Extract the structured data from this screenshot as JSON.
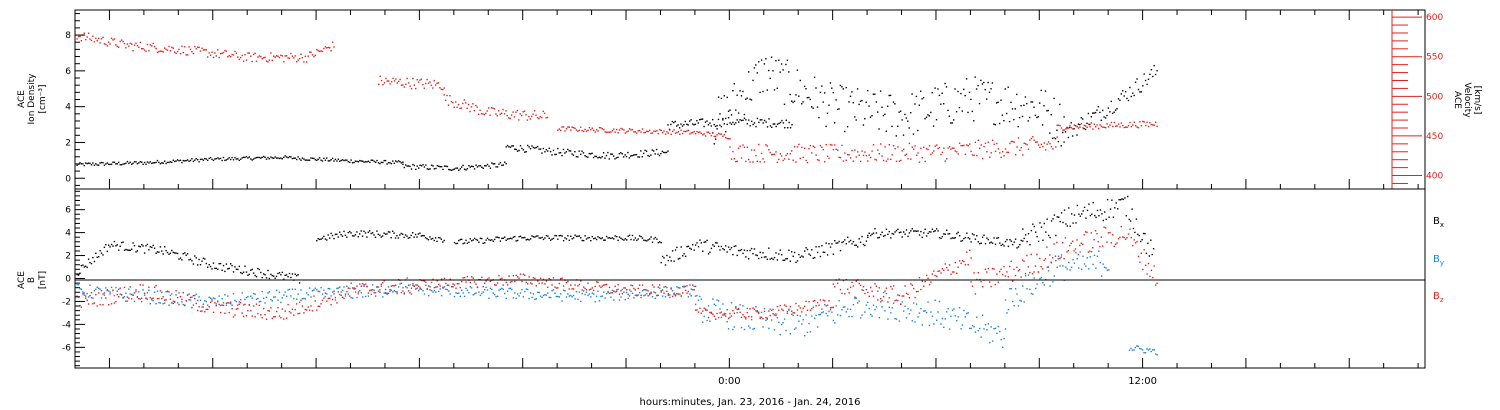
{
  "chart_data": [
    {
      "type": "scatter",
      "panel": "top",
      "left_axis": {
        "label_lines": [
          "ACE",
          "Ion Density",
          "[cm⁻³]"
        ],
        "ticks": [
          0,
          2,
          4,
          6,
          8
        ],
        "ylim": [
          -0.6,
          9.4
        ],
        "color": "#000000"
      },
      "right_axis": {
        "label_lines": [
          "ACE",
          "Velocity",
          "[km/s]"
        ],
        "ticks": [
          400,
          450,
          500,
          550,
          600
        ],
        "ylim": [
          383,
          609
        ],
        "color": "#e4211c"
      },
      "series": [
        {
          "axis": "left",
          "color": "#000000",
          "segments": [
            {
              "x": [
                -19,
                -17,
                -15,
                -13,
                -11,
                -9.5
              ],
              "y": [
                0.8,
                0.9,
                1.1,
                1.2,
                1.0,
                0.9
              ],
              "noise": 0.1
            },
            {
              "x": [
                -9.5,
                -8,
                -6.5
              ],
              "y": [
                0.7,
                0.6,
                0.8
              ],
              "noise": 0.15
            },
            {
              "x": [
                -6.5,
                -5,
                -3.5,
                -1.8
              ],
              "y": [
                1.8,
                1.5,
                1.3,
                1.5
              ],
              "noise": 0.2
            },
            {
              "x": [
                -1.8,
                0,
                1.8
              ],
              "y": [
                3.0,
                3.2,
                3.1
              ],
              "noise": 0.25
            },
            {
              "x": [
                -0.5,
                1,
                3,
                5,
                7,
                9,
                9.7
              ],
              "y": [
                3.0,
                6.0,
                4.0,
                3.5,
                4.5,
                4.0,
                3.0
              ],
              "noise": 1.3
            },
            {
              "x": [
                9.7,
                11,
                12.4
              ],
              "y": [
                2.5,
                4.0,
                6.0
              ],
              "noise": 0.5
            }
          ]
        },
        {
          "axis": "right",
          "color": "#e4211c",
          "segments": [
            {
              "x": [
                -19,
                -17.5,
                -16,
                -14,
                -12.3,
                -11.5
              ],
              "y": [
                578,
                565,
                560,
                550,
                550,
                565
              ],
              "noise": 6
            },
            {
              "x": [
                -10.2,
                -8.3
              ],
              "y": [
                520,
                515
              ],
              "noise": 7
            },
            {
              "x": [
                -8.3,
                -7,
                -5.3
              ],
              "y": [
                498,
                480,
                475
              ],
              "noise": 7
            },
            {
              "x": [
                -5,
                -1,
                0
              ],
              "y": [
                460,
                455,
                450
              ],
              "noise": 3
            },
            {
              "x": [
                0,
                3,
                6,
                9.5
              ],
              "y": [
                430,
                428,
                430,
                440
              ],
              "noise": 12
            },
            {
              "x": [
                9.5,
                12.4
              ],
              "y": [
                462,
                466
              ],
              "noise": 4
            }
          ]
        }
      ]
    },
    {
      "type": "scatter",
      "panel": "bottom",
      "left_axis": {
        "label_lines": [
          "ACE",
          "B",
          "[nT]"
        ],
        "ticks": [
          -6,
          -4,
          -2,
          0,
          2,
          4,
          6
        ],
        "ylim": [
          -7.8,
          7.8
        ],
        "color": "#000000"
      },
      "zero_line": true,
      "legend_placement": "right",
      "series": [
        {
          "name": "Bₓ",
          "color": "#000000",
          "segments": [
            {
              "x": [
                -19,
                -18,
                -16.5,
                -15,
                -13.5,
                -12.5
              ],
              "y": [
                0.5,
                3.0,
                2.5,
                1.2,
                0.5,
                0.0
              ],
              "noise": 0.4
            },
            {
              "x": [
                -12,
                -11,
                -9,
                -8.3
              ],
              "y": [
                3.5,
                4.0,
                3.8,
                3.5
              ],
              "noise": 0.3
            },
            {
              "x": [
                -8,
                -6,
                -3,
                -2
              ],
              "y": [
                3.2,
                3.6,
                3.6,
                3.4
              ],
              "noise": 0.25
            },
            {
              "x": [
                -2,
                -1,
                0,
                2,
                4
              ],
              "y": [
                1.5,
                3.0,
                2.5,
                2.0,
                3.5
              ],
              "noise": 0.6
            },
            {
              "x": [
                4,
                6,
                8.5
              ],
              "y": [
                4.0,
                4.0,
                3.0
              ],
              "noise": 0.4
            },
            {
              "x": [
                8.5,
                10,
                11.5,
                12.3
              ],
              "y": [
                3.5,
                5.5,
                6.5,
                2.0
              ],
              "noise": 1.0
            }
          ]
        },
        {
          "name": "Bᵧ",
          "color": "#1a82d8",
          "segments": [
            {
              "x": [
                -19,
                -17,
                -15,
                -13,
                -10
              ],
              "y": [
                -1.0,
                -1.5,
                -2.0,
                -1.5,
                -1.0
              ],
              "noise": 0.6
            },
            {
              "x": [
                -10,
                -7,
                -4,
                -1
              ],
              "y": [
                -0.8,
                -1.2,
                -1.5,
                -1.0
              ],
              "noise": 0.5
            },
            {
              "x": [
                -1,
                0.5,
                2,
                4,
                6,
                8
              ],
              "y": [
                -2.5,
                -3.5,
                -4.0,
                -2.0,
                -3.0,
                -5.0
              ],
              "noise": 1.2
            },
            {
              "x": [
                8,
                9.5,
                11
              ],
              "y": [
                -2.0,
                1.0,
                1.5
              ],
              "noise": 1.2
            },
            {
              "x": [
                11.6,
                12.4
              ],
              "y": [
                -6.0,
                -6.3
              ],
              "noise": 0.3
            }
          ]
        },
        {
          "name": "B_z",
          "color": "#e4211c",
          "segments": [
            {
              "x": [
                -19,
                -17,
                -15,
                -13,
                -11,
                -9
              ],
              "y": [
                -2.0,
                -1.0,
                -2.5,
                -3.0,
                -1.0,
                -0.5
              ],
              "noise": 0.7
            },
            {
              "x": [
                -9,
                -6,
                -3,
                -1
              ],
              "y": [
                -0.5,
                0.0,
                -1.0,
                -1.0
              ],
              "noise": 0.5
            },
            {
              "x": [
                -1,
                1,
                3
              ],
              "y": [
                -3.0,
                -3.0,
                -2.0
              ],
              "noise": 0.5
            },
            {
              "x": [
                3,
                5,
                7
              ],
              "y": [
                -0.5,
                -1.5,
                2.0
              ],
              "noise": 0.8
            },
            {
              "x": [
                7,
                8.5,
                10,
                11.5,
                12.4
              ],
              "y": [
                -0.5,
                1.0,
                3.0,
                4.0,
                0.0
              ],
              "noise": 1.0
            }
          ]
        }
      ]
    }
  ],
  "x_axis": {
    "label": "hours:minutes, Jan. 23, 2016 - Jan. 24, 2016",
    "tick_labels": [
      {
        "x": 0,
        "text": "0:00"
      },
      {
        "x": 12,
        "text": "12:00"
      }
    ],
    "major_ticks": [
      -18,
      -15,
      -12,
      -9,
      -6,
      -3,
      0,
      3,
      6,
      9,
      12,
      15,
      18
    ],
    "xlim": [
      -19,
      20.2
    ]
  },
  "legend": [
    {
      "main": "B",
      "sub": "x",
      "color": "#000000"
    },
    {
      "main": "B",
      "sub": "y",
      "color": "#1a82d8"
    },
    {
      "main": "B",
      "sub": "z",
      "color": "#e4211c"
    }
  ]
}
